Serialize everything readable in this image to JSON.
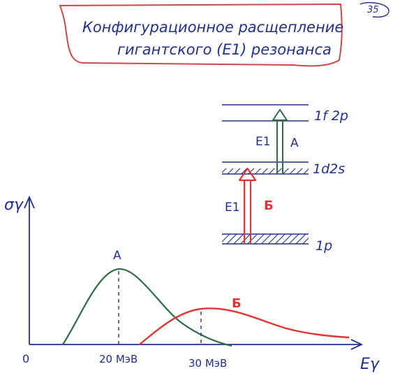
{
  "page_number": "35",
  "title": {
    "line1": "Конфигурационное расщепление",
    "line2": "гигантского (Е1) резонанса"
  },
  "levels": {
    "top": "1f 2p",
    "middle": "1d2s",
    "bottom": "1p"
  },
  "transitions": [
    {
      "id": "A",
      "label": "Е1",
      "letter": "А",
      "from": "1d2s",
      "to": "1f 2p",
      "color": "#2e6b45"
    },
    {
      "id": "B",
      "label": "Е1",
      "letter": "Б",
      "from": "1p",
      "to": "1d2s",
      "color": "#e03535"
    }
  ],
  "axes": {
    "y_label": "σγ",
    "x_label": "Eγ",
    "origin_label": "0"
  },
  "peaks": [
    {
      "id": "A",
      "letter": "А",
      "energy": 20,
      "energy_label": "20 МэВ",
      "color": "#2e6b45"
    },
    {
      "id": "B",
      "letter": "Б",
      "energy": 30,
      "energy_label": "30 МэВ",
      "color": "#e03535"
    }
  ],
  "colors": {
    "ink": "#23308a",
    "title_box": "#c94a4a",
    "green": "#2e6b45",
    "red": "#e03535"
  }
}
